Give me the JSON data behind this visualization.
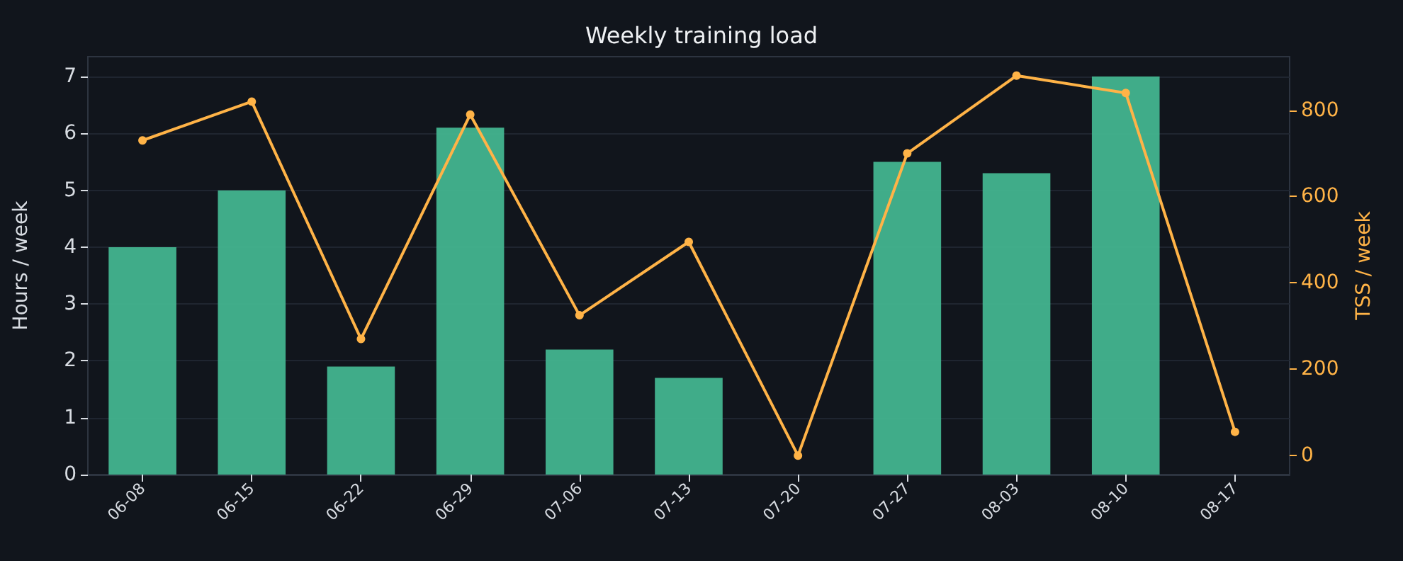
{
  "chart_data": {
    "type": "bar",
    "title": "Weekly training load",
    "ylabel": "Hours / week",
    "y2label": "TSS / week",
    "categories": [
      "06-08",
      "06-15",
      "06-22",
      "06-29",
      "07-06",
      "07-13",
      "07-20",
      "07-27",
      "08-03",
      "08-10",
      "08-17"
    ],
    "series": [
      {
        "color": "#43b48f",
        "values": [
          4.0,
          5.0,
          1.9,
          6.1,
          2.2,
          1.7,
          0,
          5.5,
          5.3,
          7.0,
          0
        ]
      },
      {
        "type": "line",
        "axis": "y2",
        "color": "#ffb347",
        "marker": "circle",
        "values": [
          730,
          820,
          270,
          790,
          325,
          495,
          0,
          700,
          880,
          840,
          55
        ]
      }
    ],
    "ylim": [
      0,
      7.35
    ],
    "yticks": [
      0,
      1,
      2,
      3,
      4,
      5,
      6,
      7
    ],
    "y2lim": [
      -44,
      924
    ],
    "y2ticks": [
      0,
      200,
      400,
      600,
      800
    ],
    "grid": "y"
  }
}
